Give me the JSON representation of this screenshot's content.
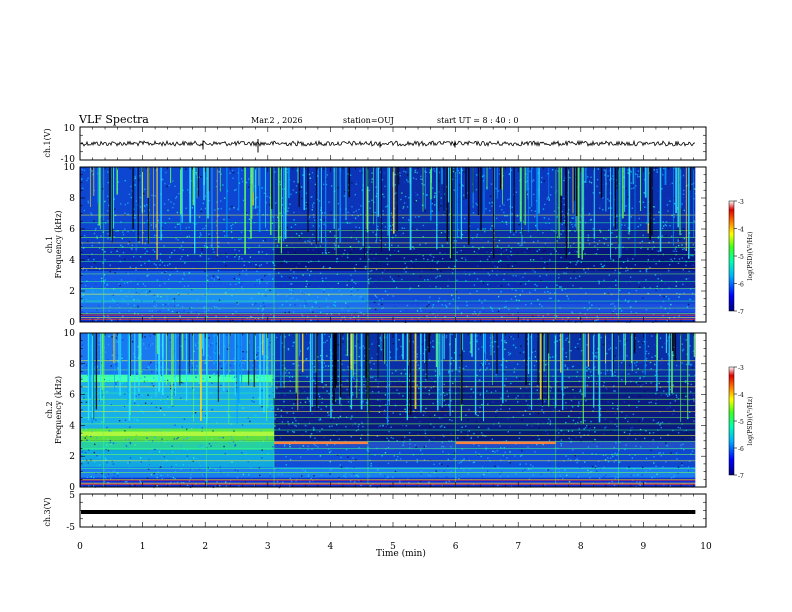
{
  "header": {
    "title": "VLF Spectra",
    "date": "Mar.2 , 2026",
    "station": "station=OUJ",
    "start": "start UT = 8 : 40 : 0"
  },
  "chart_data": [
    {
      "type": "line",
      "panel": "ch1-waveform",
      "ylabel": "ch.1(V)",
      "ylim": [
        -10,
        10
      ],
      "yticks": [
        "10",
        "-10"
      ],
      "xlim": [
        0,
        10
      ],
      "baseline": 0,
      "series": [
        {
          "name": "ch.1",
          "color": "#000000",
          "level": 0,
          "noise_amplitude": 1.2
        }
      ]
    },
    {
      "type": "heatmap",
      "panel": "ch1-spectrogram",
      "ylabel": "ch.1\nFrequency (kHz)",
      "ylim": [
        0,
        10
      ],
      "yticks": [
        "0",
        "2",
        "4",
        "6",
        "8",
        "10"
      ],
      "xlim": [
        0,
        10
      ],
      "colorbar": {
        "label": "log(PSD)(V²/Hz)",
        "range": [
          -7,
          -3
        ],
        "ticks": [
          "-3",
          "-4",
          "-5",
          "-6",
          "-7"
        ]
      },
      "segment_boundaries_min": [
        3.1,
        4.6,
        6.0,
        7.6
      ]
    },
    {
      "type": "heatmap",
      "panel": "ch2-spectrogram",
      "ylabel": "ch.2\nFrequency (kHz)",
      "ylim": [
        0,
        10
      ],
      "yticks": [
        "0",
        "2",
        "4",
        "6",
        "8",
        "10"
      ],
      "xlim": [
        0,
        10
      ],
      "colorbar": {
        "label": "log(PSD)(V²/Hz)",
        "range": [
          -7,
          -3
        ],
        "ticks": [
          "-3",
          "-4",
          "-5",
          "-6",
          "-7"
        ]
      },
      "segment_boundaries_min": [
        3.1,
        4.6,
        6.0,
        7.6
      ]
    },
    {
      "type": "line",
      "panel": "ch3-waveform",
      "ylabel": "ch.3(V)",
      "ylim": [
        -5,
        5
      ],
      "yticks": [
        "5",
        "0",
        "-5"
      ],
      "xlim": [
        0,
        10
      ],
      "series": [
        {
          "name": "ch.3",
          "color": "#000000",
          "level": 0
        }
      ]
    }
  ],
  "xaxis": {
    "label": "Time (min)",
    "ticks": [
      "0",
      "1",
      "2",
      "3",
      "4",
      "5",
      "6",
      "7",
      "8",
      "9",
      "10"
    ],
    "data_end_min": 9.83
  }
}
